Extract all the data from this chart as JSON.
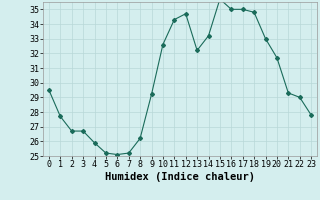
{
  "x": [
    0,
    1,
    2,
    3,
    4,
    5,
    6,
    7,
    8,
    9,
    10,
    11,
    12,
    13,
    14,
    15,
    16,
    17,
    18,
    19,
    20,
    21,
    22,
    23
  ],
  "y": [
    29.5,
    27.7,
    26.7,
    26.7,
    25.9,
    25.2,
    25.1,
    25.2,
    26.2,
    29.2,
    32.6,
    34.3,
    34.7,
    32.2,
    33.2,
    35.7,
    35.0,
    35.0,
    34.8,
    33.0,
    31.7,
    29.3,
    29.0,
    27.8
  ],
  "xlim": [
    -0.5,
    23.5
  ],
  "ylim": [
    25,
    35.5
  ],
  "yticks": [
    25,
    26,
    27,
    28,
    29,
    30,
    31,
    32,
    33,
    34,
    35
  ],
  "xticks": [
    0,
    1,
    2,
    3,
    4,
    5,
    6,
    7,
    8,
    9,
    10,
    11,
    12,
    13,
    14,
    15,
    16,
    17,
    18,
    19,
    20,
    21,
    22,
    23
  ],
  "xlabel": "Humidex (Indice chaleur)",
  "line_color": "#1a6b5a",
  "marker": "D",
  "marker_size": 2.0,
  "bg_color": "#d4eeee",
  "grid_color": "#b8d8d8",
  "xlabel_fontsize": 7.5,
  "tick_fontsize": 6.0
}
